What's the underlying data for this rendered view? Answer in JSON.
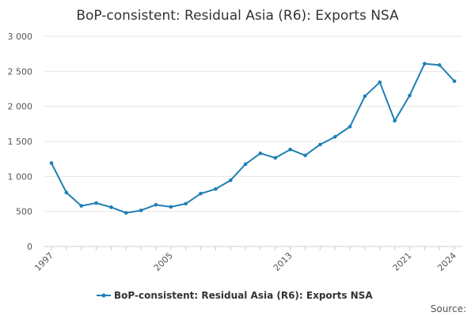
{
  "chart_data": {
    "type": "line",
    "title": "BoP-consistent: Residual Asia (R6): Exports NSA",
    "xlabel": "",
    "ylabel": "",
    "x": [
      1997,
      1998,
      1999,
      2000,
      2001,
      2002,
      2003,
      2004,
      2005,
      2006,
      2007,
      2008,
      2009,
      2010,
      2011,
      2012,
      2013,
      2014,
      2015,
      2016,
      2017,
      2018,
      2019,
      2020,
      2021,
      2022,
      2023,
      2024
    ],
    "x_tick_labels": [
      "1997",
      "2005",
      "2013",
      "2021",
      "2024"
    ],
    "y_tick_labels": [
      "0",
      "500",
      "1 000",
      "1 500",
      "2 000",
      "2 500",
      "3 000"
    ],
    "ylim": [
      0,
      3000
    ],
    "grid": "horizontal",
    "legend_position": "bottom-center",
    "series": [
      {
        "name": "BoP-consistent: Residual Asia (R6): Exports NSA",
        "color": "#1f7fb4",
        "values": [
          1190,
          770,
          580,
          620,
          560,
          480,
          515,
          595,
          565,
          610,
          755,
          820,
          945,
          1175,
          1330,
          1265,
          1385,
          1300,
          1455,
          1565,
          1710,
          2145,
          2345,
          1795,
          2155,
          2610,
          2590,
          2360
        ]
      }
    ]
  },
  "source_label": "Source:"
}
